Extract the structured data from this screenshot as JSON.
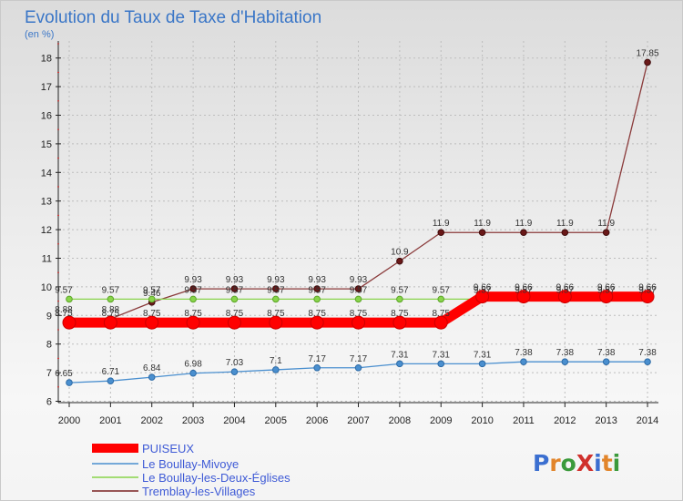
{
  "chart_data": {
    "type": "line",
    "title": "Evolution du Taux de Taxe d'Habitation",
    "subtitle": "(en %)",
    "xlabel": "",
    "ylabel": "",
    "categories": [
      "2000",
      "2001",
      "2002",
      "2003",
      "2004",
      "2005",
      "2006",
      "2007",
      "2008",
      "2009",
      "2010",
      "2011",
      "2012",
      "2013",
      "2014"
    ],
    "ylim": [
      6,
      18.5
    ],
    "yticks": [
      6,
      7,
      8,
      9,
      10,
      11,
      12,
      13,
      14,
      15,
      16,
      17,
      18
    ],
    "series": [
      {
        "name": "PUISEUX",
        "color": "#ff0000",
        "values": [
          8.75,
          8.75,
          8.75,
          8.75,
          8.75,
          8.75,
          8.75,
          8.75,
          8.75,
          8.75,
          9.66,
          9.66,
          9.66,
          9.66,
          9.66
        ]
      },
      {
        "name": "Le Boullay-Mivoye",
        "color": "#4a8fcf",
        "values": [
          6.65,
          6.71,
          6.84,
          6.98,
          7.03,
          7.1,
          7.17,
          7.17,
          7.31,
          7.31,
          7.31,
          7.38,
          7.38,
          7.38,
          7.38
        ]
      },
      {
        "name": "Le Boullay-les-Deux-Églises",
        "color": "#88d44a",
        "values": [
          9.57,
          9.57,
          9.57,
          9.57,
          9.57,
          9.57,
          9.57,
          9.57,
          9.57,
          9.57,
          9.57,
          9.57,
          9.57,
          9.57,
          9.57
        ]
      },
      {
        "name": "Tremblay-les-Villages",
        "color": "#7a2222",
        "values": [
          8.88,
          8.88,
          9.46,
          9.93,
          9.93,
          9.93,
          9.93,
          9.93,
          10.9,
          11.9,
          11.9,
          11.9,
          11.9,
          11.9,
          17.85
        ]
      }
    ],
    "legend_position": "bottom-left"
  },
  "logo": {
    "text": "Proxiti",
    "letters": [
      {
        "ch": "P",
        "color": "#3b6fd0"
      },
      {
        "ch": "r",
        "color": "#e2852b"
      },
      {
        "ch": "o",
        "color": "#3b9a3b"
      },
      {
        "ch": "X",
        "color": "#d0312d"
      },
      {
        "ch": "i",
        "color": "#3b6fd0"
      },
      {
        "ch": "t",
        "color": "#e2852b"
      },
      {
        "ch": "i",
        "color": "#3b9a3b"
      }
    ]
  }
}
